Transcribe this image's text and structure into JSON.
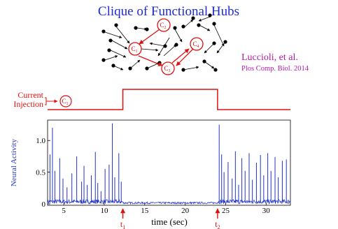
{
  "slide": {
    "title": "Clique of Functional Hubs",
    "citation_author": "Luccioli, et al.",
    "citation_journal": "Plos Comp. Biol. 2014",
    "current_label_line1": "Current",
    "current_label_line2": "Injection",
    "hub_label": "C",
    "hub_subscripts": [
      "2",
      "1",
      "3",
      "4"
    ],
    "injected_hub_subscript": "1",
    "colors": {
      "title": "#1f2bd6",
      "citation": "#b11aa6",
      "red": "#e01010",
      "trace": "#2233cc",
      "nodes": "#000000"
    }
  },
  "chart_data": {
    "type": "line",
    "ylabel": "Neural Activity",
    "xlabel": "time (sec)",
    "xlim": [
      3,
      33
    ],
    "ylim": [
      0,
      1.3
    ],
    "x_ticks": [
      5,
      10,
      15,
      20,
      25,
      30
    ],
    "y_ticks": [
      0,
      0.5,
      1.0
    ],
    "y_tick_labels": [
      "0",
      "0.5",
      "1.0"
    ],
    "markers": [
      {
        "label": "t",
        "sub": "1",
        "x": 12.3
      },
      {
        "label": "t",
        "sub": "2",
        "x": 24.0
      }
    ],
    "current_step": {
      "off_level": 0,
      "on_level": 1,
      "on_start": 12.3,
      "on_end": 24.0
    },
    "spikes": [
      [
        3.3,
        0.78
      ],
      [
        3.6,
        1.2
      ],
      [
        3.9,
        0.52
      ],
      [
        4.5,
        0.72
      ],
      [
        4.9,
        0.4
      ],
      [
        5.4,
        0.26
      ],
      [
        6.0,
        0.48
      ],
      [
        6.6,
        0.75
      ],
      [
        7.2,
        0.35
      ],
      [
        7.5,
        0.6
      ],
      [
        7.9,
        0.3
      ],
      [
        8.4,
        0.45
      ],
      [
        8.9,
        0.82
      ],
      [
        9.2,
        0.33
      ],
      [
        9.6,
        0.2
      ],
      [
        10.1,
        0.55
      ],
      [
        10.6,
        0.62
      ],
      [
        11.0,
        1.27
      ],
      [
        11.3,
        0.42
      ],
      [
        11.8,
        0.8
      ],
      [
        12.1,
        0.35
      ],
      [
        24.2,
        1.25
      ],
      [
        24.5,
        0.78
      ],
      [
        24.8,
        0.5
      ],
      [
        25.3,
        0.66
      ],
      [
        25.8,
        0.4
      ],
      [
        26.2,
        0.83
      ],
      [
        26.6,
        0.3
      ],
      [
        27.0,
        0.72
      ],
      [
        27.4,
        0.52
      ],
      [
        27.9,
        0.8
      ],
      [
        28.3,
        0.38
      ],
      [
        28.8,
        0.65
      ],
      [
        29.3,
        0.77
      ],
      [
        29.7,
        0.45
      ],
      [
        30.2,
        0.8
      ],
      [
        30.6,
        0.52
      ],
      [
        31.1,
        0.74
      ],
      [
        31.5,
        0.42
      ],
      [
        32.0,
        0.68
      ],
      [
        32.5,
        0.7
      ]
    ],
    "baseline_noise_active": 0.07,
    "baseline_noise_quiet": 0.03
  }
}
